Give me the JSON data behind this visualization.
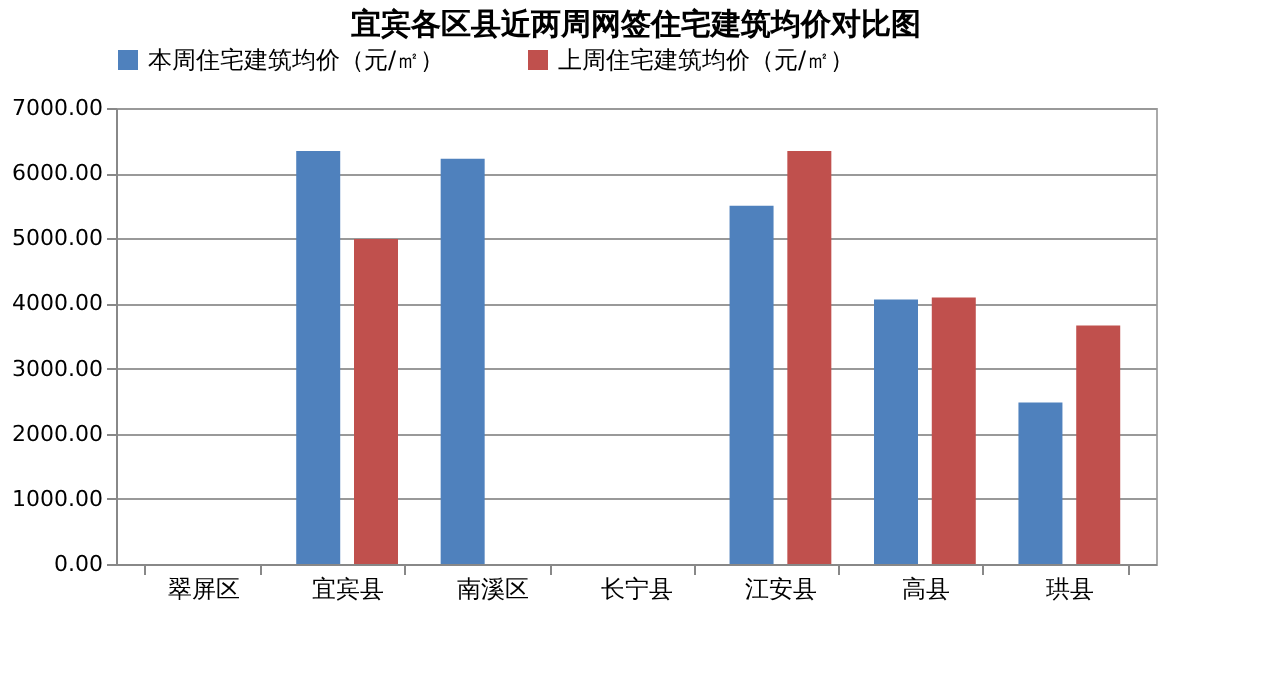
{
  "chart_data": {
    "type": "bar",
    "title": "宜宾各区县近两周网签住宅建筑均价对比图",
    "categories": [
      "翠屏区",
      "宜宾县",
      "南溪区",
      "长宁县",
      "江安县",
      "高县",
      "珙县"
    ],
    "series": [
      {
        "name": "本周住宅建筑均价（元/㎡）",
        "color": "#4f81bd",
        "values": [
          null,
          6340,
          6220,
          null,
          5500,
          4060,
          2480
        ]
      },
      {
        "name": "上周住宅建筑均价（元/㎡）",
        "color": "#c0504d",
        "values": [
          null,
          4990,
          null,
          null,
          6340,
          4090,
          3660
        ]
      }
    ],
    "ylim": [
      0,
      7000
    ],
    "yticks": [
      {
        "value": 0,
        "label": "0.00"
      },
      {
        "value": 1000,
        "label": "1000.00"
      },
      {
        "value": 2000,
        "label": "2000.00"
      },
      {
        "value": 3000,
        "label": "3000.00"
      },
      {
        "value": 4000,
        "label": "4000.00"
      },
      {
        "value": 5000,
        "label": "5000.00"
      },
      {
        "value": 6000,
        "label": "6000.00"
      },
      {
        "value": 7000,
        "label": "7000.00"
      }
    ],
    "grid": "y",
    "legend": "top"
  }
}
